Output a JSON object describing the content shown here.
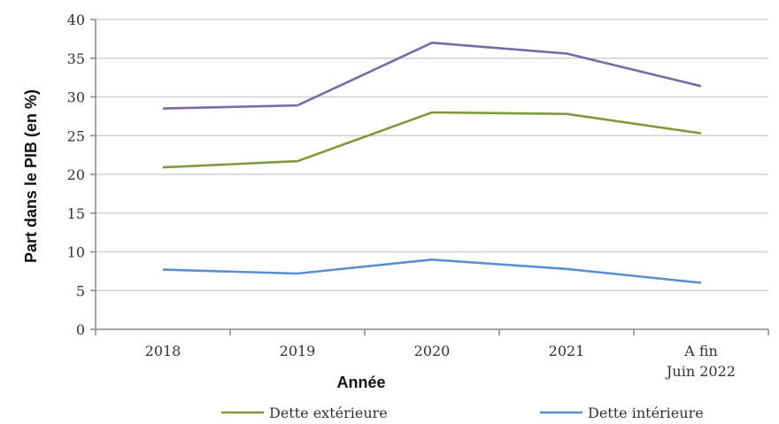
{
  "chart_data": {
    "type": "line",
    "title": "",
    "xlabel": "Année",
    "ylabel": "Part dans le PIB (en %)",
    "ylim": [
      0,
      40
    ],
    "yticks": [
      0,
      5,
      10,
      15,
      20,
      25,
      30,
      35,
      40
    ],
    "grid": "horizontal",
    "legend_position": "bottom",
    "categories": [
      "2018",
      "2019",
      "2020",
      "2021",
      "A fin\nJuin 2022"
    ],
    "series": [
      {
        "name": "",
        "color": "#7b68a6",
        "values": [
          28.5,
          28.9,
          37.0,
          35.6,
          31.4
        ],
        "show_in_legend": false
      },
      {
        "name": "Dette extérieure",
        "color": "#7f9a3b",
        "values": [
          20.9,
          21.7,
          28.0,
          27.8,
          25.3
        ],
        "show_in_legend": true
      },
      {
        "name": "Dette intérieure",
        "color": "#5b8fd1",
        "values": [
          7.7,
          7.2,
          9.0,
          7.8,
          6.0
        ],
        "show_in_legend": true
      }
    ]
  }
}
